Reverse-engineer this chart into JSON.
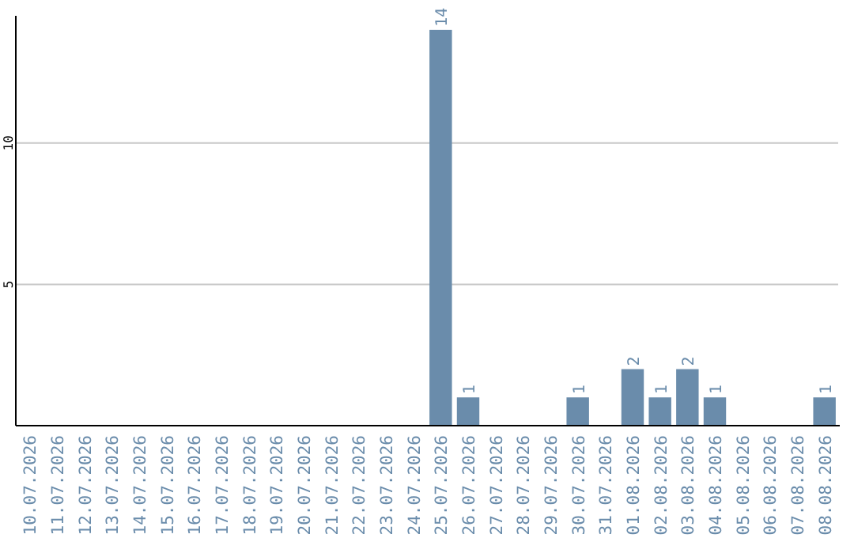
{
  "chart_data": {
    "type": "bar",
    "categories": [
      "10.07.2026",
      "11.07.2026",
      "12.07.2026",
      "13.07.2026",
      "14.07.2026",
      "15.07.2026",
      "16.07.2026",
      "17.07.2026",
      "18.07.2026",
      "19.07.2026",
      "20.07.2026",
      "21.07.2026",
      "22.07.2026",
      "23.07.2026",
      "24.07.2026",
      "25.07.2026",
      "26.07.2026",
      "27.07.2026",
      "28.07.2026",
      "29.07.2026",
      "30.07.2026",
      "31.07.2026",
      "01.08.2026",
      "02.08.2026",
      "03.08.2026",
      "04.08.2026",
      "05.08.2026",
      "06.08.2026",
      "07.08.2026",
      "08.08.2026"
    ],
    "values": [
      0,
      0,
      0,
      0,
      0,
      0,
      0,
      0,
      0,
      0,
      0,
      0,
      0,
      0,
      0,
      14,
      1,
      0,
      0,
      0,
      1,
      0,
      2,
      1,
      2,
      1,
      0,
      0,
      0,
      1
    ],
    "value_labels": [
      null,
      null,
      null,
      null,
      null,
      null,
      null,
      null,
      null,
      null,
      null,
      null,
      null,
      null,
      null,
      "14",
      "1",
      null,
      null,
      null,
      "1",
      null,
      "2",
      "1",
      "2",
      "1",
      null,
      null,
      null,
      "1"
    ],
    "color": "#6a8cab",
    "ylim": [
      0,
      14.5
    ],
    "yticks": [
      5,
      10
    ],
    "grid": "y"
  }
}
